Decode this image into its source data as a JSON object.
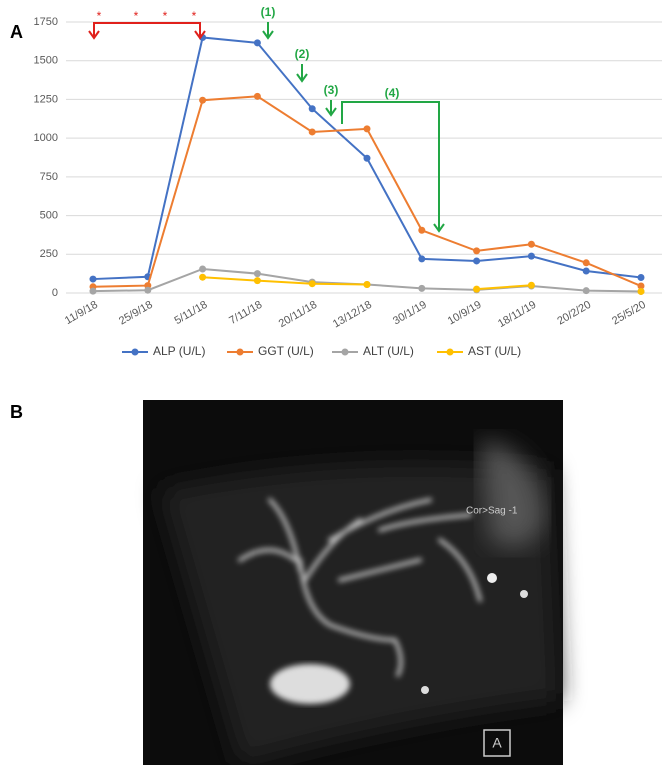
{
  "chart_data": {
    "type": "line",
    "categories": [
      "11/9/18",
      "25/9/18",
      "5/11/18",
      "7/11/18",
      "20/11/18",
      "13/12/18",
      "30/1/19",
      "10/9/19",
      "18/11/19",
      "20/2/20",
      "25/5/20"
    ],
    "series": [
      {
        "name": "ALP (U/L)",
        "color": "#4472c4",
        "values": [
          90,
          105,
          1650,
          1615,
          1190,
          870,
          220,
          207,
          238,
          142,
          100
        ]
      },
      {
        "name": "GGT (U/L)",
        "color": "#ed7d31",
        "values": [
          40,
          48,
          1245,
          1270,
          1040,
          1060,
          405,
          272,
          315,
          195,
          45
        ]
      },
      {
        "name": "ALT (U/L)",
        "color": "#a5a5a5",
        "values": [
          12,
          18,
          155,
          125,
          70,
          55,
          30,
          20,
          45,
          15,
          10
        ]
      },
      {
        "name": "AST (U/L)",
        "color": "#ffc000",
        "values": [
          null,
          null,
          102,
          80,
          60,
          55,
          null,
          25,
          50,
          null,
          10
        ]
      }
    ],
    "ylim": [
      0,
      1750
    ],
    "yticks": [
      0,
      250,
      500,
      750,
      1000,
      1250,
      1500,
      1750
    ],
    "grid": true,
    "legend": "bottom"
  },
  "annotations": {
    "panel_a": "A",
    "panel_b": "B",
    "stars": [
      "*",
      "*",
      "*",
      "*"
    ],
    "steps": [
      "(1)",
      "(2)",
      "(3)",
      "(4)"
    ],
    "image_label": "Cor>Sag -1",
    "image_marker": "A"
  }
}
